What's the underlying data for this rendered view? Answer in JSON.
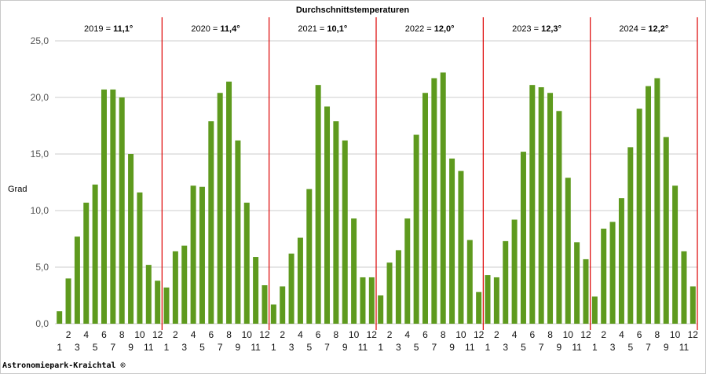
{
  "credit": "Astronomiepark-Kraichtal ©",
  "colors": {
    "bar": "#5e9a1e",
    "year_divider": "#dd0000",
    "grid": "#cccccc"
  },
  "chart_data": {
    "type": "bar",
    "title": "Durchschnittstemperaturen",
    "ylabel": "Grad",
    "ylim": [
      0,
      25
    ],
    "yticks": [
      "0,0",
      "5,0",
      "10,0",
      "15,0",
      "20,0",
      "25,0"
    ],
    "grid": true,
    "month_labels": [
      "1",
      "2",
      "3",
      "4",
      "5",
      "6",
      "7",
      "8",
      "9",
      "10",
      "11",
      "12"
    ],
    "years": [
      {
        "year": "2019",
        "avg": "11,1°",
        "values": [
          1.1,
          4.0,
          7.7,
          10.7,
          12.3,
          20.7,
          20.7,
          20.0,
          15.0,
          11.6,
          5.2,
          3.8
        ]
      },
      {
        "year": "2020",
        "avg": "11,4°",
        "values": [
          3.2,
          6.4,
          6.9,
          12.2,
          12.1,
          17.9,
          20.4,
          21.4,
          16.2,
          10.7,
          5.9,
          3.4
        ]
      },
      {
        "year": "2021",
        "avg": "10,1°",
        "values": [
          1.7,
          3.3,
          6.2,
          7.6,
          11.9,
          21.1,
          19.2,
          17.9,
          16.2,
          9.3,
          4.1,
          4.1
        ]
      },
      {
        "year": "2022",
        "avg": "12,0°",
        "values": [
          2.5,
          5.4,
          6.5,
          9.3,
          16.7,
          20.4,
          21.7,
          22.2,
          14.6,
          13.5,
          7.4,
          2.8
        ]
      },
      {
        "year": "2023",
        "avg": "12,3°",
        "values": [
          4.3,
          4.1,
          7.3,
          9.2,
          15.2,
          21.1,
          20.9,
          20.4,
          18.8,
          12.9,
          7.2,
          5.7
        ]
      },
      {
        "year": "2024",
        "avg": "12,2°",
        "values": [
          2.4,
          8.4,
          9.0,
          11.1,
          15.6,
          19.0,
          21.0,
          21.7,
          16.5,
          12.2,
          6.4,
          3.3
        ]
      }
    ]
  }
}
